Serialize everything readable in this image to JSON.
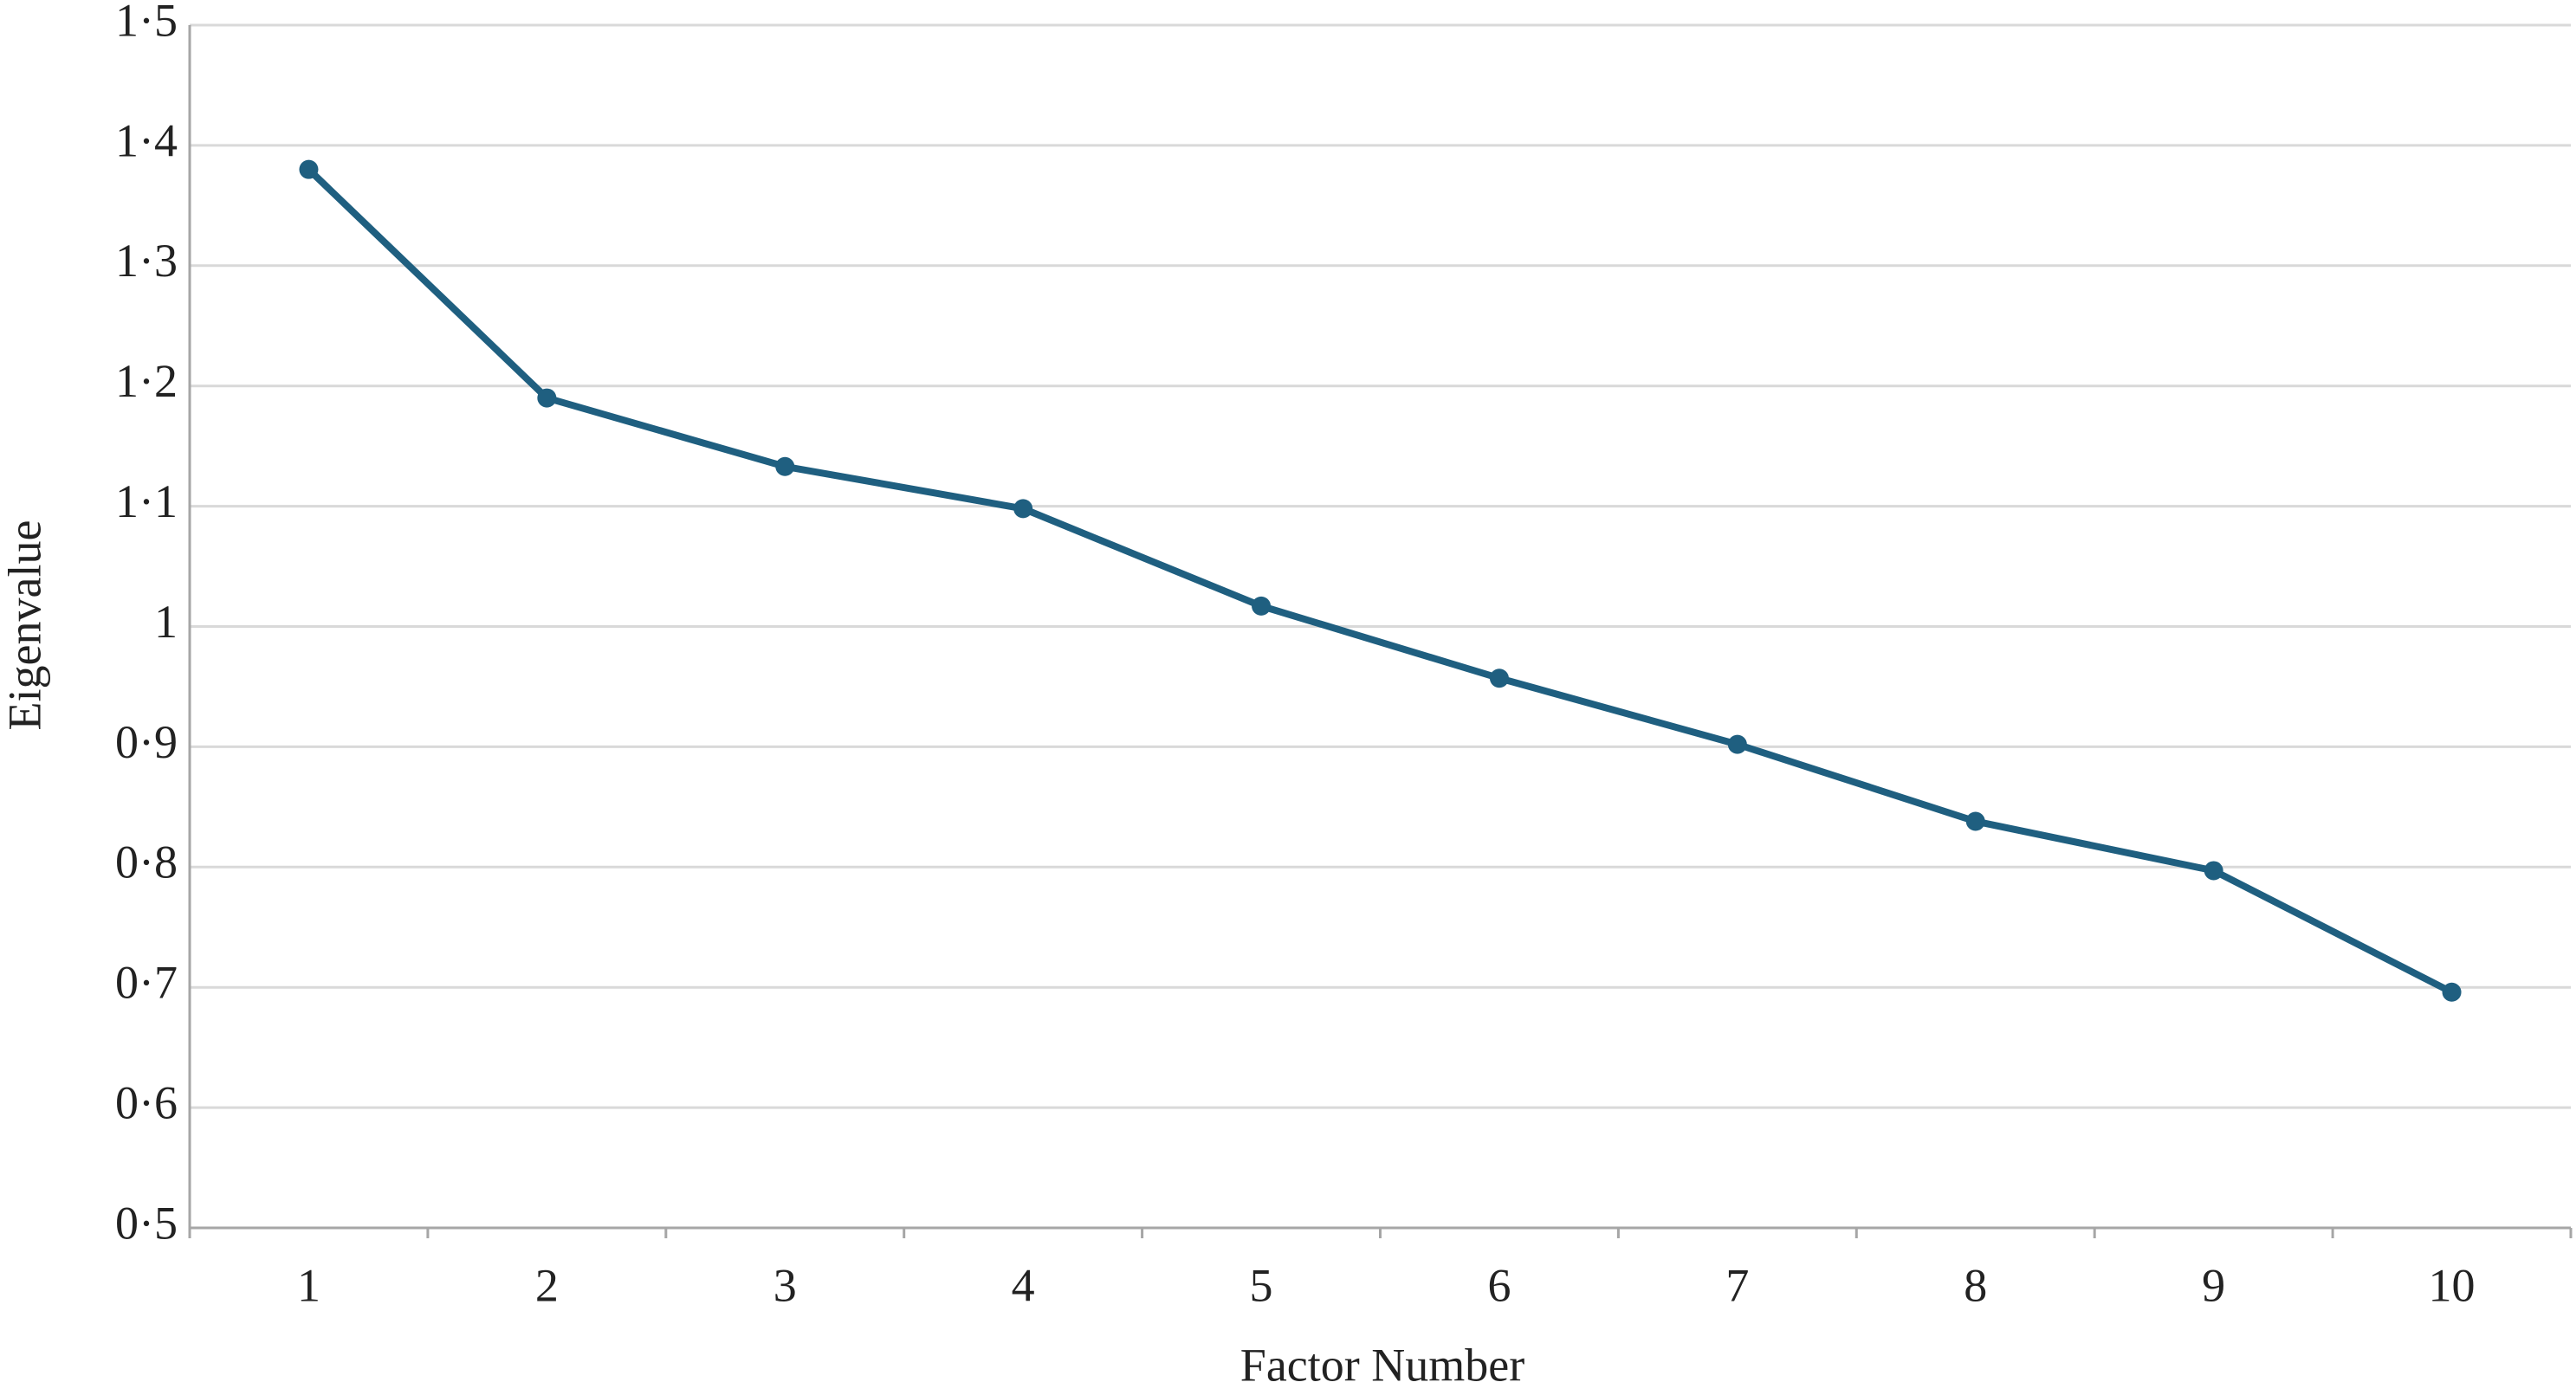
{
  "chart_data": {
    "type": "line",
    "x_label": "Factor  Number",
    "y_label": "Eigenvalue",
    "categories": [
      "1",
      "2",
      "3",
      "4",
      "5",
      "6",
      "7",
      "8",
      "9",
      "10"
    ],
    "values": [
      1.38,
      1.19,
      1.133,
      1.098,
      1.017,
      0.957,
      0.902,
      0.838,
      0.797,
      0.696
    ],
    "color": "#1f5f80",
    "ylim": [
      0.5,
      1.5
    ],
    "yticks": [
      {
        "value": 0.5,
        "label": "0·5"
      },
      {
        "value": 0.6,
        "label": "0·6"
      },
      {
        "value": 0.7,
        "label": "0·7"
      },
      {
        "value": 0.8,
        "label": "0·8"
      },
      {
        "value": 0.9,
        "label": "0·9"
      },
      1,
      {
        "value": 1.1,
        "label": "1·1"
      },
      {
        "value": 1.2,
        "label": "1·2"
      },
      {
        "value": 1.3,
        "label": "1·3"
      },
      {
        "value": 1.4,
        "label": "1·4"
      },
      {
        "value": 1.5,
        "label": "1·5"
      }
    ],
    "grid": true
  }
}
